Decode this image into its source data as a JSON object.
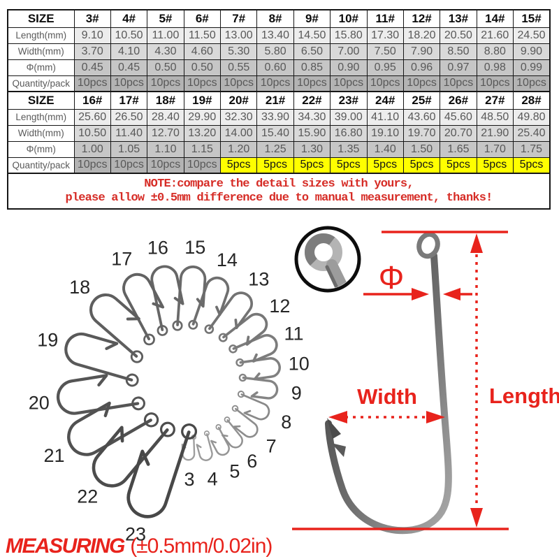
{
  "colors": {
    "accent_red": "#e8231c",
    "note_red": "#d62c26",
    "highlight_yellow": "#ffff00",
    "row_shades": [
      "#ededed",
      "#d9d9d9",
      "#c6c6c6",
      "#b3b3b3"
    ]
  },
  "size_table_1": {
    "header": [
      "SIZE",
      "3#",
      "4#",
      "5#",
      "6#",
      "7#",
      "8#",
      "9#",
      "10#",
      "11#",
      "12#",
      "13#",
      "14#",
      "15#"
    ],
    "rows": [
      {
        "label": "Length(mm)",
        "values": [
          "9.10",
          "10.50",
          "11.00",
          "11.50",
          "13.00",
          "13.40",
          "14.50",
          "15.80",
          "17.30",
          "18.20",
          "20.50",
          "21.60",
          "24.50"
        ]
      },
      {
        "label": "Width(mm)",
        "values": [
          "3.70",
          "4.10",
          "4.30",
          "4.60",
          "5.30",
          "5.80",
          "6.50",
          "7.00",
          "7.50",
          "7.90",
          "8.50",
          "8.80",
          "9.90"
        ]
      },
      {
        "label": "Φ(mm)",
        "values": [
          "0.45",
          "0.45",
          "0.50",
          "0.50",
          "0.55",
          "0.60",
          "0.85",
          "0.90",
          "0.95",
          "0.96",
          "0.97",
          "0.98",
          "0.99"
        ]
      },
      {
        "label": "Quantity/pack",
        "values": [
          "10pcs",
          "10pcs",
          "10pcs",
          "10pcs",
          "10pcs",
          "10pcs",
          "10pcs",
          "10pcs",
          "10pcs",
          "10pcs",
          "10pcs",
          "10pcs",
          "10pcs"
        ]
      }
    ]
  },
  "size_table_2": {
    "header": [
      "SIZE",
      "16#",
      "17#",
      "18#",
      "19#",
      "20#",
      "21#",
      "22#",
      "23#",
      "24#",
      "25#",
      "26#",
      "27#",
      "28#"
    ],
    "rows": [
      {
        "label": "Length(mm)",
        "values": [
          "25.60",
          "26.50",
          "28.40",
          "29.90",
          "32.30",
          "33.90",
          "34.30",
          "39.00",
          "41.10",
          "43.60",
          "45.60",
          "48.50",
          "49.80"
        ]
      },
      {
        "label": "Width(mm)",
        "values": [
          "10.50",
          "11.40",
          "12.70",
          "13.20",
          "14.00",
          "15.40",
          "15.90",
          "16.80",
          "19.10",
          "19.70",
          "20.70",
          "21.90",
          "25.40"
        ]
      },
      {
        "label": "Φ(mm)",
        "values": [
          "1.00",
          "1.05",
          "1.10",
          "1.15",
          "1.20",
          "1.25",
          "1.30",
          "1.35",
          "1.40",
          "1.50",
          "1.65",
          "1.70",
          "1.75"
        ]
      },
      {
        "label": "Quantity/pack",
        "values": [
          "10pcs",
          "10pcs",
          "10pcs",
          "10pcs",
          "5pcs",
          "5pcs",
          "5pcs",
          "5pcs",
          "5pcs",
          "5pcs",
          "5pcs",
          "5pcs",
          "5pcs"
        ]
      }
    ]
  },
  "highlight_quantity_value": "5pcs",
  "note": {
    "line1": "NOTE:compare the detail sizes with yours,",
    "line2": "please allow ±0.5mm difference due to manual measurement, thanks!"
  },
  "fan": {
    "hook_labels": [
      "3",
      "4",
      "5",
      "6",
      "7",
      "8",
      "9",
      "10",
      "11",
      "12",
      "13",
      "14",
      "15",
      "16",
      "17",
      "18",
      "19",
      "20",
      "21",
      "20",
      "21"
    ]
  },
  "diagram": {
    "phi_label": "Φ",
    "width_label": "Width",
    "length_label": "Length"
  },
  "measuring": {
    "word": "MEASURING",
    "detail": "(±0.5mm/0.02in)"
  }
}
